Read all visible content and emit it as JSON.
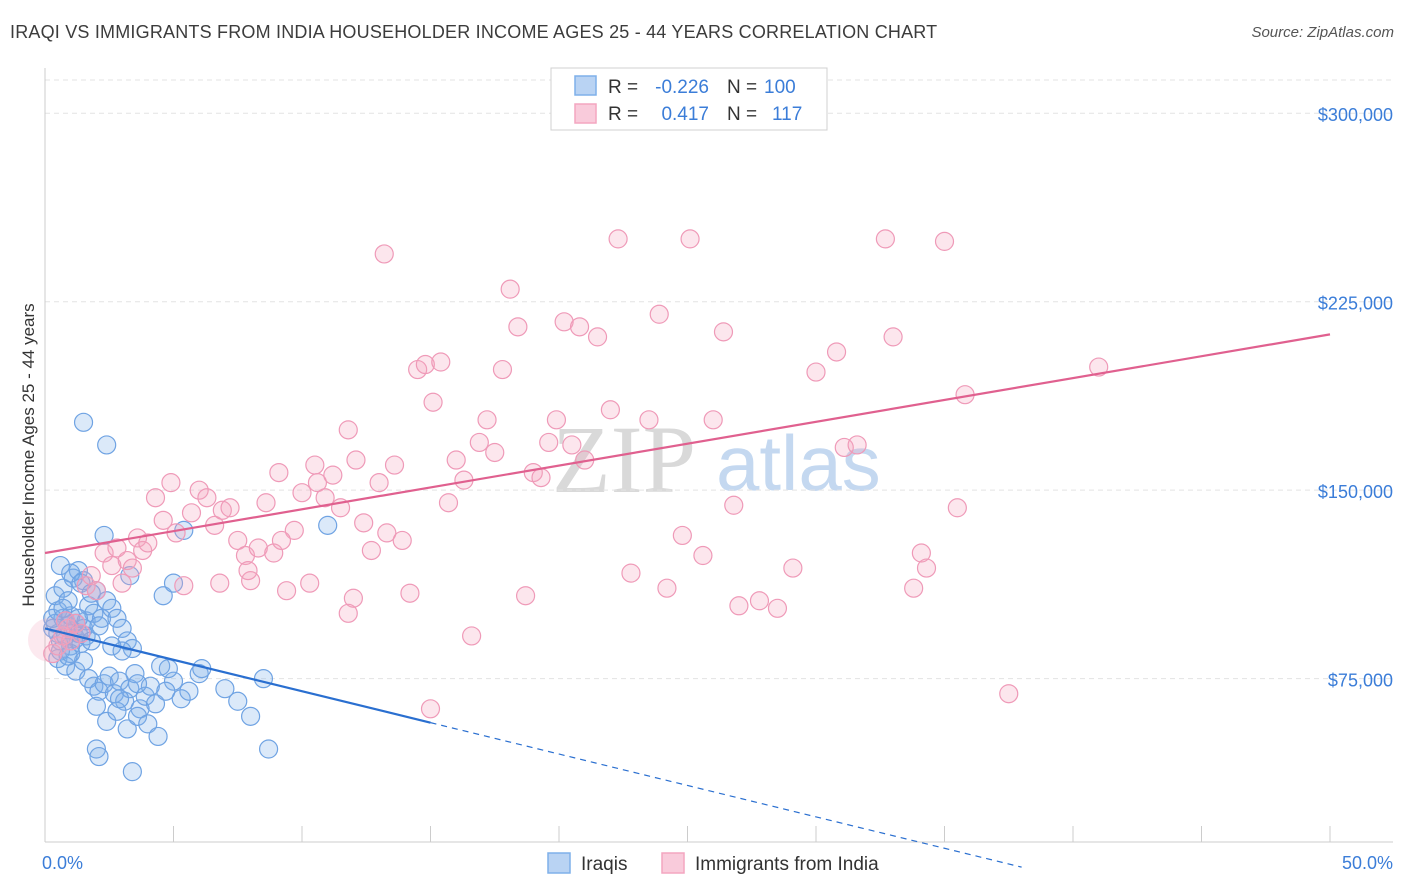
{
  "title": "IRAQI VS IMMIGRANTS FROM INDIA HOUSEHOLDER INCOME AGES 25 - 44 YEARS CORRELATION CHART",
  "source": "Source: ZipAtlas.com",
  "watermark": {
    "zip": "ZIP",
    "atlas": "atlas"
  },
  "colors": {
    "iraqi": "#7fb0ea",
    "iraqi_line": "#2a6fd0",
    "india": "#f4a6c0",
    "india_line": "#e0608f",
    "axis_text": "#3b7dd8"
  },
  "legend_top": [
    {
      "r_label": "R =",
      "r_value": "-0.226",
      "n_label": "N =",
      "n_value": "100"
    },
    {
      "r_label": "R =",
      "r_value": "0.417",
      "n_label": "N =",
      "n_value": "117"
    }
  ],
  "legend_bottom": [
    "Iraqis",
    "Immigrants from India"
  ],
  "chart_data": {
    "type": "scatter",
    "title": "IRAQI VS IMMIGRANTS FROM INDIA HOUSEHOLDER INCOME AGES 25 - 44 YEARS CORRELATION CHART",
    "xlabel": "",
    "ylabel": "Householder Income Ages 25 - 44 years",
    "xlim": [
      0,
      50
    ],
    "ylim": [
      10000,
      318000
    ],
    "x_tick_labels": [
      "0.0%",
      "50.0%"
    ],
    "y_ticks": [
      75000,
      150000,
      225000,
      300000
    ],
    "y_tick_labels": [
      "$75,000",
      "$150,000",
      "$225,000",
      "$300,000"
    ],
    "grid": true,
    "legend_position": "top-center",
    "series": [
      {
        "name": "Iraqis",
        "r": -0.226,
        "n": 100,
        "trend": {
          "x": [
            0,
            15
          ],
          "y": [
            95000,
            57500
          ],
          "dashed_to": [
            38,
            0
          ]
        },
        "points": [
          [
            0.3,
            95000
          ],
          [
            0.5,
            93000
          ],
          [
            0.4,
            97000
          ],
          [
            0.6,
            90000
          ],
          [
            0.7,
            99000
          ],
          [
            0.8,
            92000
          ],
          [
            0.9,
            96000
          ],
          [
            1.0,
            88000
          ],
          [
            1.1,
            94000
          ],
          [
            1.2,
            91000
          ],
          [
            0.3,
            99000
          ],
          [
            0.5,
            102000
          ],
          [
            0.6,
            86000
          ],
          [
            0.8,
            98000
          ],
          [
            1.0,
            100000
          ],
          [
            1.2,
            97000
          ],
          [
            1.3,
            93000
          ],
          [
            1.4,
            89000
          ],
          [
            1.5,
            95000
          ],
          [
            1.6,
            98000
          ],
          [
            0.4,
            108000
          ],
          [
            0.7,
            111000
          ],
          [
            0.9,
            106000
          ],
          [
            1.1,
            115000
          ],
          [
            1.3,
            118000
          ],
          [
            1.5,
            114000
          ],
          [
            1.7,
            104000
          ],
          [
            1.9,
            101000
          ],
          [
            2.0,
            110000
          ],
          [
            2.2,
            99000
          ],
          [
            0.6,
            120000
          ],
          [
            1.0,
            117000
          ],
          [
            1.4,
            113000
          ],
          [
            1.8,
            109000
          ],
          [
            2.4,
            106000
          ],
          [
            2.6,
            103000
          ],
          [
            2.8,
            99000
          ],
          [
            3.0,
            95000
          ],
          [
            3.2,
            90000
          ],
          [
            3.4,
            87000
          ],
          [
            0.5,
            83000
          ],
          [
            0.8,
            80000
          ],
          [
            1.0,
            85000
          ],
          [
            1.2,
            78000
          ],
          [
            1.5,
            82000
          ],
          [
            1.7,
            75000
          ],
          [
            1.9,
            72000
          ],
          [
            2.1,
            70000
          ],
          [
            2.3,
            73000
          ],
          [
            2.5,
            76000
          ],
          [
            2.7,
            69000
          ],
          [
            2.9,
            74000
          ],
          [
            3.1,
            66000
          ],
          [
            3.3,
            71000
          ],
          [
            3.5,
            77000
          ],
          [
            3.7,
            63000
          ],
          [
            3.9,
            68000
          ],
          [
            4.1,
            72000
          ],
          [
            4.3,
            65000
          ],
          [
            4.5,
            80000
          ],
          [
            2.0,
            64000
          ],
          [
            2.4,
            58000
          ],
          [
            2.8,
            62000
          ],
          [
            3.2,
            55000
          ],
          [
            3.6,
            60000
          ],
          [
            4.0,
            57000
          ],
          [
            4.4,
            52000
          ],
          [
            2.0,
            47000
          ],
          [
            2.1,
            44000
          ],
          [
            3.4,
            38000
          ],
          [
            5.0,
            74000
          ],
          [
            5.3,
            67000
          ],
          [
            5.6,
            70000
          ],
          [
            6.0,
            77000
          ],
          [
            7.0,
            71000
          ],
          [
            7.5,
            66000
          ],
          [
            8.0,
            60000
          ],
          [
            8.5,
            75000
          ],
          [
            8.7,
            47000
          ],
          [
            4.6,
            108000
          ],
          [
            4.8,
            79000
          ],
          [
            4.7,
            70000
          ],
          [
            5.0,
            113000
          ],
          [
            5.4,
            134000
          ],
          [
            3.3,
            116000
          ],
          [
            2.3,
            132000
          ],
          [
            1.5,
            177000
          ],
          [
            2.4,
            168000
          ],
          [
            11.0,
            136000
          ],
          [
            6.1,
            79000
          ],
          [
            0.9,
            84000
          ],
          [
            1.6,
            92000
          ],
          [
            2.1,
            96000
          ],
          [
            2.6,
            88000
          ],
          [
            3.0,
            86000
          ],
          [
            1.8,
            90000
          ],
          [
            1.3,
            99000
          ],
          [
            0.7,
            103000
          ],
          [
            2.9,
            67000
          ],
          [
            3.6,
            73000
          ]
        ]
      },
      {
        "name": "Immigrants from India",
        "r": 0.417,
        "n": 117,
        "trend": {
          "x": [
            0,
            50
          ],
          "y": [
            125000,
            212000
          ]
        },
        "points": [
          [
            0.3,
            85000
          ],
          [
            0.5,
            88000
          ],
          [
            0.7,
            92000
          ],
          [
            0.9,
            95000
          ],
          [
            1.0,
            90000
          ],
          [
            1.2,
            97000
          ],
          [
            1.4,
            93000
          ],
          [
            0.8,
            98000
          ],
          [
            1.6,
            112000
          ],
          [
            1.8,
            116000
          ],
          [
            2.0,
            110000
          ],
          [
            2.3,
            125000
          ],
          [
            2.6,
            120000
          ],
          [
            2.8,
            127000
          ],
          [
            3.0,
            113000
          ],
          [
            3.2,
            122000
          ],
          [
            3.4,
            119000
          ],
          [
            3.6,
            131000
          ],
          [
            3.8,
            126000
          ],
          [
            4.0,
            129000
          ],
          [
            4.3,
            147000
          ],
          [
            4.6,
            138000
          ],
          [
            4.9,
            153000
          ],
          [
            5.1,
            133000
          ],
          [
            5.4,
            112000
          ],
          [
            5.7,
            141000
          ],
          [
            6.0,
            150000
          ],
          [
            6.3,
            147000
          ],
          [
            6.6,
            136000
          ],
          [
            6.9,
            142000
          ],
          [
            7.2,
            143000
          ],
          [
            7.5,
            130000
          ],
          [
            7.8,
            124000
          ],
          [
            8.0,
            114000
          ],
          [
            8.3,
            127000
          ],
          [
            8.6,
            145000
          ],
          [
            8.9,
            125000
          ],
          [
            9.1,
            157000
          ],
          [
            9.4,
            110000
          ],
          [
            9.7,
            134000
          ],
          [
            10.0,
            149000
          ],
          [
            10.3,
            113000
          ],
          [
            10.6,
            153000
          ],
          [
            10.9,
            147000
          ],
          [
            11.2,
            156000
          ],
          [
            11.5,
            143000
          ],
          [
            11.8,
            174000
          ],
          [
            12.1,
            162000
          ],
          [
            12.4,
            137000
          ],
          [
            12.7,
            126000
          ],
          [
            13.0,
            153000
          ],
          [
            13.3,
            133000
          ],
          [
            13.6,
            160000
          ],
          [
            13.9,
            130000
          ],
          [
            14.2,
            109000
          ],
          [
            14.5,
            198000
          ],
          [
            14.8,
            200000
          ],
          [
            15.1,
            185000
          ],
          [
            15.4,
            201000
          ],
          [
            15.7,
            145000
          ],
          [
            16.0,
            162000
          ],
          [
            16.3,
            154000
          ],
          [
            16.6,
            92000
          ],
          [
            16.9,
            169000
          ],
          [
            17.2,
            178000
          ],
          [
            17.5,
            165000
          ],
          [
            17.8,
            198000
          ],
          [
            18.1,
            230000
          ],
          [
            18.4,
            215000
          ],
          [
            18.7,
            108000
          ],
          [
            19.0,
            157000
          ],
          [
            19.3,
            155000
          ],
          [
            19.6,
            169000
          ],
          [
            19.9,
            178000
          ],
          [
            20.2,
            217000
          ],
          [
            20.5,
            168000
          ],
          [
            20.8,
            215000
          ],
          [
            21.0,
            162000
          ],
          [
            21.5,
            211000
          ],
          [
            22.0,
            182000
          ],
          [
            22.3,
            250000
          ],
          [
            22.8,
            117000
          ],
          [
            23.5,
            178000
          ],
          [
            23.9,
            220000
          ],
          [
            24.2,
            111000
          ],
          [
            24.8,
            132000
          ],
          [
            25.1,
            250000
          ],
          [
            25.6,
            124000
          ],
          [
            26.0,
            178000
          ],
          [
            26.4,
            213000
          ],
          [
            26.8,
            144000
          ],
          [
            27.0,
            104000
          ],
          [
            27.8,
            106000
          ],
          [
            28.5,
            103000
          ],
          [
            29.1,
            119000
          ],
          [
            30.0,
            197000
          ],
          [
            30.8,
            205000
          ],
          [
            31.1,
            167000
          ],
          [
            31.6,
            168000
          ],
          [
            32.7,
            250000
          ],
          [
            33.0,
            211000
          ],
          [
            33.8,
            111000
          ],
          [
            34.1,
            125000
          ],
          [
            34.3,
            119000
          ],
          [
            35.0,
            249000
          ],
          [
            35.5,
            143000
          ],
          [
            35.8,
            188000
          ],
          [
            37.5,
            69000
          ],
          [
            41.0,
            199000
          ],
          [
            15.0,
            63000
          ],
          [
            12.0,
            107000
          ],
          [
            10.5,
            160000
          ],
          [
            6.8,
            113000
          ],
          [
            11.8,
            101000
          ],
          [
            13.2,
            244000
          ],
          [
            7.9,
            118000
          ],
          [
            9.2,
            130000
          ]
        ]
      }
    ]
  }
}
